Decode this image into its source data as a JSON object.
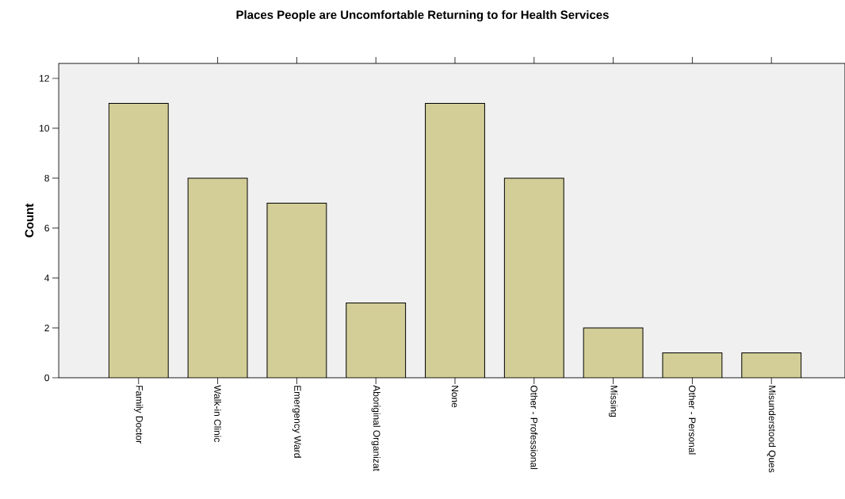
{
  "chart_data": {
    "type": "bar",
    "title": "Places People are Uncomfortable Returning to for Health Services",
    "ylabel": "Count",
    "categories": [
      "Family Doctor",
      "Walk-in Clinic",
      "Emergency Ward",
      "Aboriginal Organizat",
      "None",
      "Other - Professional",
      "Missing",
      "Other - Personal",
      "Misunderstood Ques"
    ],
    "values": [
      11,
      8,
      7,
      3,
      11,
      8,
      2,
      1,
      1
    ],
    "color": "#d3ce97",
    "ylim": [
      0,
      12.6
    ],
    "yticks": [
      0,
      2,
      4,
      6,
      8,
      10,
      12
    ]
  }
}
